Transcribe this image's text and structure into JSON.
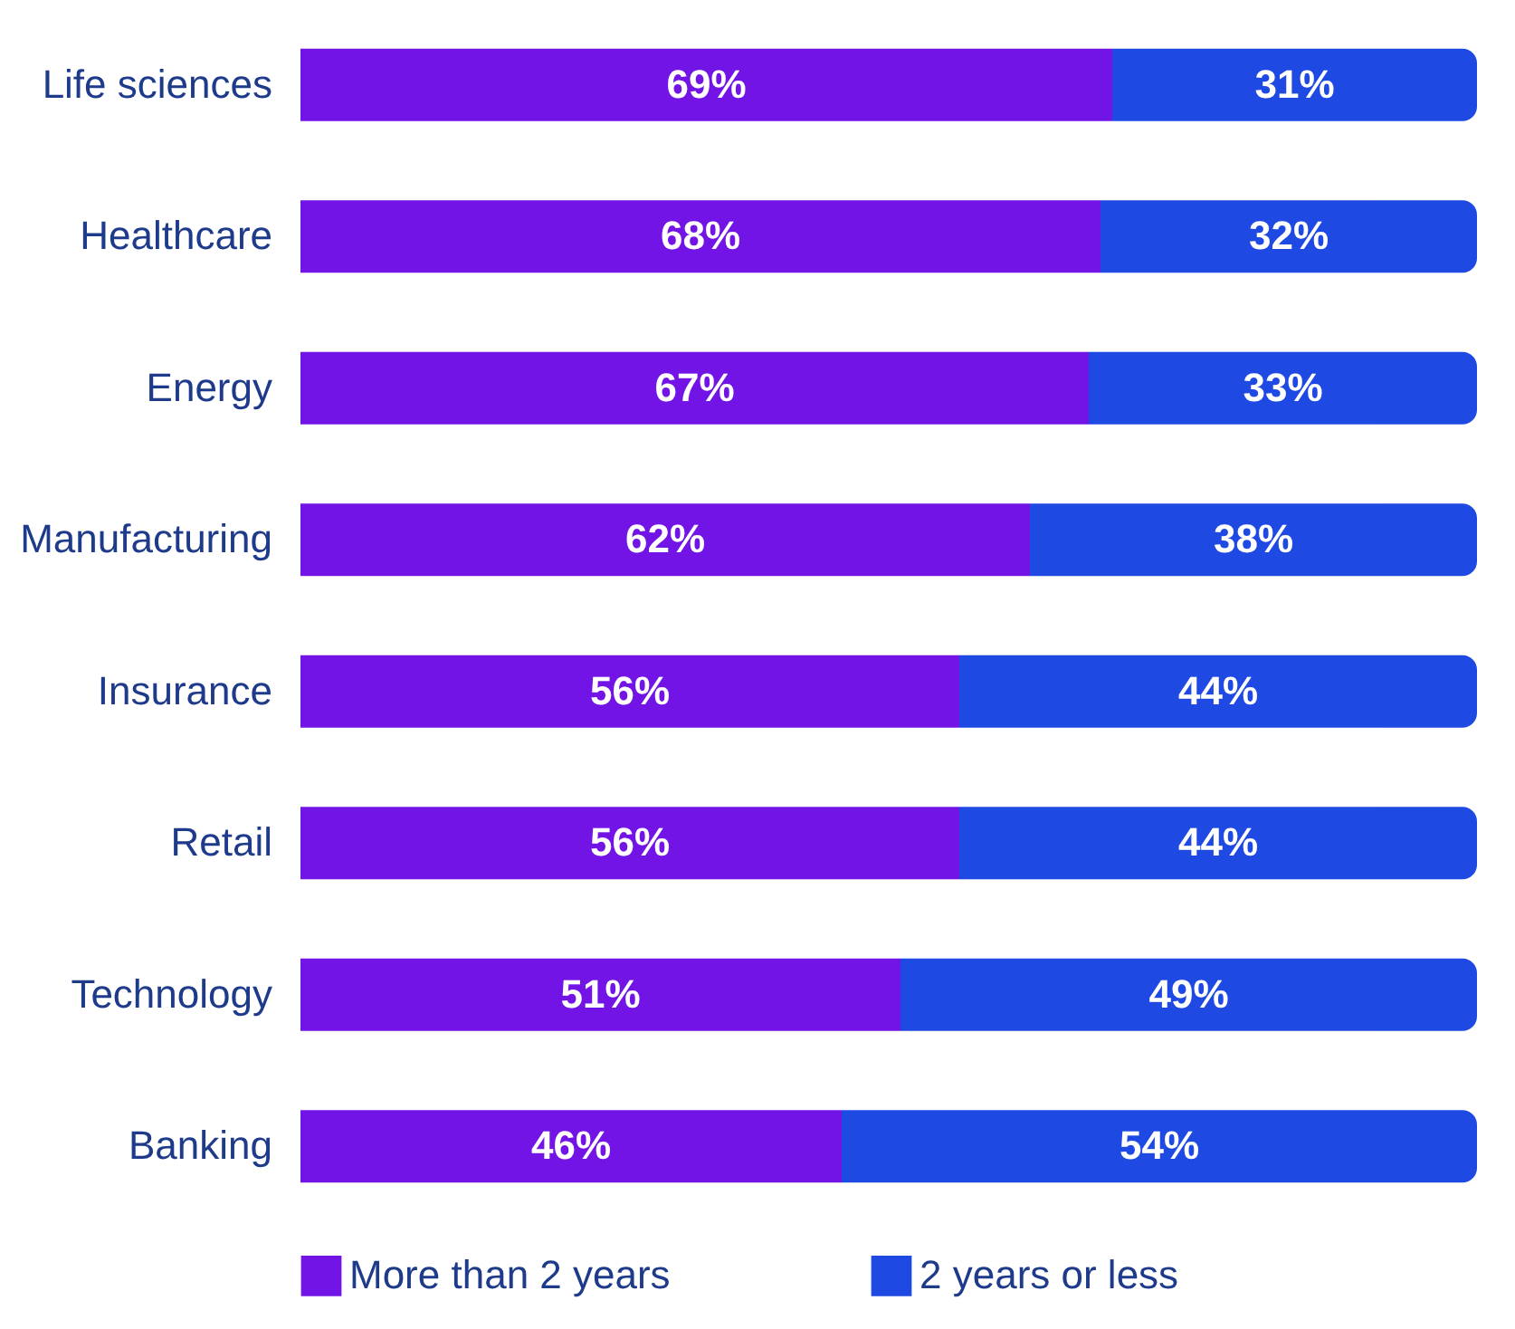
{
  "chart_data": {
    "type": "bar",
    "orientation": "horizontal",
    "stacked": true,
    "categories": [
      "Life sciences",
      "Healthcare",
      "Energy",
      "Manufacturing",
      "Insurance",
      "Retail",
      "Technology",
      "Banking"
    ],
    "series": [
      {
        "name": "More than 2 years",
        "color": "#7314e6",
        "values": [
          69,
          68,
          67,
          62,
          56,
          56,
          51,
          46
        ],
        "value_labels": [
          "69%",
          "68%",
          "67%",
          "62%",
          "56%",
          "56%",
          "51%",
          "46%"
        ]
      },
      {
        "name": "2 years or less",
        "color": "#1e49e2",
        "values": [
          31,
          32,
          33,
          38,
          44,
          44,
          49,
          54
        ],
        "value_labels": [
          "31%",
          "32%",
          "33%",
          "38%",
          "44%",
          "44%",
          "49%",
          "54%"
        ]
      }
    ],
    "legend": "bottom",
    "tick_labels": "y"
  }
}
